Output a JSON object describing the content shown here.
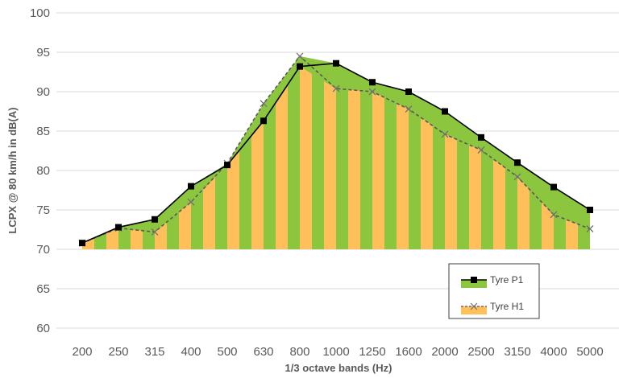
{
  "chart_data": {
    "type": "area",
    "title": "",
    "xlabel": "1/3 octave bands (Hz)",
    "ylabel": "LCPX @ 80 km/h in dB(A)",
    "ylim": [
      60,
      100
    ],
    "yticks": [
      60,
      65,
      70,
      75,
      80,
      85,
      90,
      95,
      100
    ],
    "grid": "horizontal",
    "legend_position": "bottom-right",
    "categories": [
      "200",
      "250",
      "315",
      "400",
      "500",
      "630",
      "800",
      "1000",
      "1250",
      "1600",
      "2000",
      "2500",
      "3150",
      "4000",
      "5000"
    ],
    "series": [
      {
        "name": "Tyre P1",
        "values": [
          70.8,
          72.8,
          73.8,
          78.0,
          80.7,
          86.3,
          93.2,
          93.6,
          91.2,
          90.0,
          87.5,
          84.2,
          81.0,
          77.9,
          75.0
        ],
        "line_color": "#000000",
        "fill_color": "#8cc63f",
        "marker": "square"
      },
      {
        "name": "Tyre H1",
        "values": [
          70.8,
          72.7,
          72.2,
          76.0,
          80.9,
          88.5,
          94.5,
          90.4,
          90.0,
          87.8,
          84.6,
          82.6,
          79.2,
          74.4,
          72.6
        ],
        "line_color": "#595959",
        "fill_color": "#ffbf5a",
        "marker": "x",
        "line_style": "dashed"
      }
    ]
  }
}
